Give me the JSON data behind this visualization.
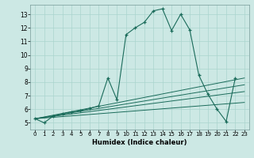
{
  "title": "",
  "xlabel": "Humidex (Indice chaleur)",
  "background_color": "#cce8e4",
  "grid_color": "#aad4ce",
  "line_color": "#1a6b5a",
  "xlim": [
    -0.5,
    23.5
  ],
  "ylim": [
    4.5,
    13.7
  ],
  "xticks": [
    0,
    1,
    2,
    3,
    4,
    5,
    6,
    7,
    8,
    9,
    10,
    11,
    12,
    13,
    14,
    15,
    16,
    17,
    18,
    19,
    20,
    21,
    22,
    23
  ],
  "yticks": [
    5,
    6,
    7,
    8,
    9,
    10,
    11,
    12,
    13
  ],
  "series1_x": [
    0,
    1,
    2,
    3,
    4,
    5,
    6,
    7,
    8,
    9,
    10,
    11,
    12,
    13,
    14,
    15,
    16,
    17,
    18,
    19,
    20,
    21,
    22
  ],
  "series1_y": [
    5.3,
    5.0,
    5.5,
    5.65,
    5.8,
    5.9,
    6.05,
    6.25,
    8.3,
    6.7,
    11.5,
    12.0,
    12.4,
    13.25,
    13.4,
    11.8,
    13.0,
    11.85,
    8.5,
    7.1,
    6.0,
    5.1,
    8.3
  ],
  "series2_x": [
    0,
    23
  ],
  "series2_y": [
    5.3,
    8.3
  ],
  "series3_x": [
    0,
    23
  ],
  "series3_y": [
    5.3,
    7.8
  ],
  "series4_x": [
    0,
    23
  ],
  "series4_y": [
    5.3,
    7.3
  ],
  "series5_x": [
    0,
    23
  ],
  "series5_y": [
    5.3,
    6.5
  ]
}
